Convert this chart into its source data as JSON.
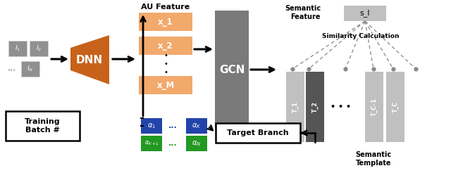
{
  "bg_color": "#ffffff",
  "orange_color": "#C8621A",
  "light_orange": "#F2A96C",
  "gray_box": "#909090",
  "gcn_gray": "#7A7A7A",
  "blue_color": "#2244AA",
  "green_color": "#229922",
  "semantic_light": "#C0C0C0",
  "semantic_dark": "#555555",
  "dnn_label": "DNN",
  "gcn_label": "GCN",
  "au_feature_label": "AU Feature",
  "semantic_feature_label": "Semantic\nFeature",
  "similarity_label": "Similarity Calculation",
  "semantic_template_label": "Semantic\nTemplate",
  "training_batch_label": "Training\nBatch #",
  "target_branch_label": "Target Branch",
  "figw": 6.4,
  "figh": 2.46,
  "dpi": 100
}
